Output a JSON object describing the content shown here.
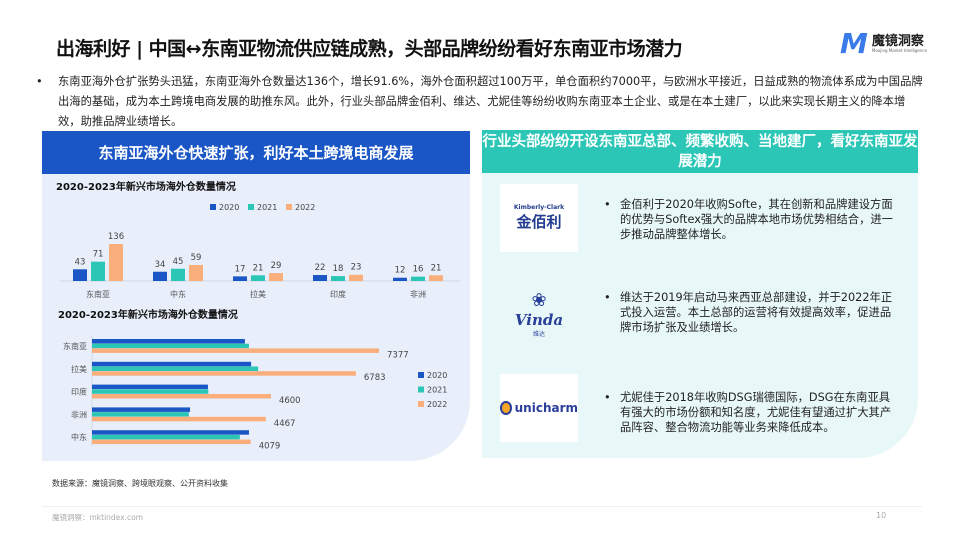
{
  "header": {
    "title": "出海利好 | 中国↔东南亚物流供应链成熟，头部品牌纷纷看好东南亚市场潜力",
    "logo_text": "魔镜洞察",
    "logo_sub": "Moojing Market Intelligence"
  },
  "intro": "东南亚海外仓扩张势头迅猛，东南亚海外仓数量达136个，增长91.6%，海外仓面积超过100万平，单仓面积约7000平，与欧洲水平接近，日益成熟的物流体系成为中国品牌出海的基础，成为本土跨境电商发展的助推东风。此外，行业头部品牌金佰利、维达、尤妮佳等纷纷收购东南亚本土企业、或是在本土建厂，以此来实现长期主义的降本增效，助推品牌业绩增长。",
  "left_panel": {
    "header": "东南亚海外仓快速扩张，利好本土跨境电商发展"
  },
  "right_panel": {
    "header": "行业头部纷纷开设东南亚总部、频繁收购、当地建厂，看好东南亚发展潜力",
    "items": [
      {
        "logo": "Kimberly-Clark 金佰利",
        "logo_en": "Kimberly-Clark",
        "logo_cn": "金佰利",
        "text": "金佰利于2020年收购Softe，其在创新和品牌建设方面的优势与Softex强大的品牌本地市场优势相结合，进一步推动品牌整体增长。"
      },
      {
        "logo": "Vinda 维达",
        "logo_en": "Vinda",
        "logo_cn": "维达",
        "text": "维达于2019年启动马来西亚总部建设，并于2022年正式投入运营。本土总部的运营将有效提高效率，促进品牌市场扩张及业绩增长。"
      },
      {
        "logo": "unicharm",
        "logo_en": "unicharm",
        "text": "尤妮佳于2018年收购DSG瑞德国际，DSG在东南亚具有强大的市场份额和知名度，尤妮佳有望通过扩大其产品阵容、整合物流功能等业务来降低成本。"
      }
    ]
  },
  "source": "数据来源：魔镜洞察、跨境眼观察、公开资料收集",
  "footer": {
    "site": "魔镜洞察：mktindex.com",
    "page": "10"
  },
  "colors": {
    "2020": "#1a56c6",
    "2021": "#2cc6b6",
    "2022": "#f9ae7c"
  },
  "chart_data": [
    {
      "type": "bar",
      "title": "2020-2023年新兴市场海外仓数量情况",
      "categories": [
        "东南亚",
        "中东",
        "拉美",
        "印度",
        "非洲"
      ],
      "series": [
        {
          "name": "2020",
          "values": [
            43,
            34,
            17,
            22,
            12
          ]
        },
        {
          "name": "2021",
          "values": [
            71,
            45,
            21,
            18,
            16
          ]
        },
        {
          "name": "2022",
          "values": [
            136,
            59,
            29,
            23,
            21
          ]
        }
      ],
      "legend": "top",
      "grid": false
    },
    {
      "type": "bar",
      "orientation": "horizontal",
      "title": "2020-2023年新兴市场海外仓数量情况",
      "categories": [
        "东南亚",
        "拉美",
        "印度",
        "非洲",
        "中东"
      ],
      "series": [
        {
          "name": "2020",
          "values": [
            3930,
            4090,
            2980,
            2520,
            4035
          ]
        },
        {
          "name": "2021",
          "values": [
            4035,
            4270,
            2990,
            2490,
            3800
          ]
        },
        {
          "name": "2022",
          "values": [
            7377,
            6783,
            4600,
            4467,
            4079
          ]
        }
      ],
      "labeled_series": "2022",
      "legend": "right",
      "grid": false
    }
  ]
}
